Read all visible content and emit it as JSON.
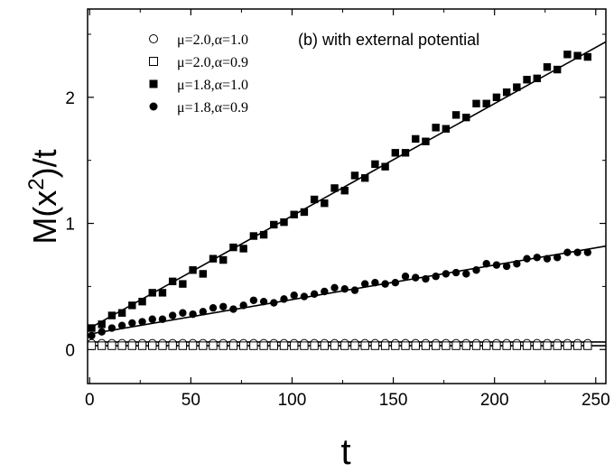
{
  "chart_data": {
    "type": "scatter",
    "annotation": "(b) with external potential",
    "xlabel": "t",
    "ylabel_main": "M(x",
    "ylabel_sup": "2",
    "ylabel_tail": ")/t",
    "xlim": [
      -1,
      255
    ],
    "ylim": [
      -0.27,
      2.7
    ],
    "x_ticks": [
      0,
      50,
      100,
      150,
      200,
      250
    ],
    "x_tick_labels": [
      "0",
      "50",
      "100",
      "150",
      "200",
      "250"
    ],
    "y_ticks": [
      0,
      1,
      2
    ],
    "y_tick_labels": [
      "0",
      "1",
      "2"
    ],
    "x": [
      1,
      6,
      11,
      16,
      21,
      26,
      31,
      36,
      41,
      46,
      51,
      56,
      61,
      66,
      71,
      76,
      81,
      86,
      91,
      96,
      101,
      106,
      111,
      116,
      121,
      126,
      131,
      136,
      141,
      146,
      151,
      156,
      161,
      166,
      171,
      176,
      181,
      186,
      191,
      196,
      201,
      206,
      211,
      216,
      221,
      226,
      231,
      236,
      241,
      246
    ],
    "series": [
      {
        "name": "μ=2.0,α=1.0",
        "marker": "circle-open",
        "values": [
          0.05,
          0.05,
          0.05,
          0.05,
          0.05,
          0.05,
          0.05,
          0.05,
          0.05,
          0.05,
          0.05,
          0.05,
          0.05,
          0.05,
          0.05,
          0.05,
          0.05,
          0.05,
          0.05,
          0.05,
          0.05,
          0.05,
          0.05,
          0.05,
          0.05,
          0.05,
          0.05,
          0.05,
          0.05,
          0.05,
          0.05,
          0.05,
          0.05,
          0.05,
          0.05,
          0.05,
          0.05,
          0.05,
          0.05,
          0.05,
          0.05,
          0.05,
          0.05,
          0.05,
          0.05,
          0.05,
          0.05,
          0.05,
          0.05,
          0.05
        ],
        "fit": [
          0.06,
          0.06
        ]
      },
      {
        "name": "μ=2.0,α=0.9",
        "marker": "square-open",
        "values": [
          0.03,
          0.03,
          0.03,
          0.03,
          0.03,
          0.03,
          0.03,
          0.03,
          0.03,
          0.03,
          0.03,
          0.03,
          0.03,
          0.03,
          0.03,
          0.03,
          0.03,
          0.03,
          0.03,
          0.03,
          0.03,
          0.03,
          0.03,
          0.03,
          0.03,
          0.03,
          0.03,
          0.03,
          0.03,
          0.03,
          0.03,
          0.03,
          0.03,
          0.03,
          0.03,
          0.03,
          0.03,
          0.03,
          0.03,
          0.03,
          0.03,
          0.03,
          0.03,
          0.03,
          0.03,
          0.03,
          0.03,
          0.03,
          0.03,
          0.03
        ],
        "fit": [
          0.03,
          0.03
        ]
      },
      {
        "name": "μ=1.8,α=1.0",
        "marker": "square-filled",
        "values": [
          0.17,
          0.2,
          0.27,
          0.29,
          0.35,
          0.38,
          0.45,
          0.45,
          0.54,
          0.52,
          0.63,
          0.6,
          0.72,
          0.71,
          0.81,
          0.8,
          0.9,
          0.91,
          0.99,
          1.01,
          1.07,
          1.09,
          1.19,
          1.16,
          1.28,
          1.26,
          1.38,
          1.36,
          1.47,
          1.45,
          1.56,
          1.56,
          1.67,
          1.65,
          1.76,
          1.75,
          1.86,
          1.84,
          1.95,
          1.95,
          2.0,
          2.04,
          2.08,
          2.14,
          2.15,
          2.24,
          2.22,
          2.34,
          2.33,
          2.32
        ],
        "fit": [
          0.16,
          2.44
        ]
      },
      {
        "name": "μ=1.8,α=0.9",
        "marker": "circle-filled",
        "values": [
          0.11,
          0.14,
          0.17,
          0.19,
          0.21,
          0.22,
          0.24,
          0.24,
          0.27,
          0.29,
          0.28,
          0.3,
          0.33,
          0.34,
          0.32,
          0.35,
          0.39,
          0.38,
          0.37,
          0.4,
          0.43,
          0.42,
          0.44,
          0.46,
          0.49,
          0.48,
          0.47,
          0.52,
          0.53,
          0.52,
          0.53,
          0.58,
          0.57,
          0.56,
          0.58,
          0.6,
          0.61,
          0.6,
          0.63,
          0.68,
          0.67,
          0.66,
          0.68,
          0.72,
          0.73,
          0.72,
          0.73,
          0.77,
          0.77,
          0.77
        ],
        "fit": [
          0.12,
          0.82
        ]
      }
    ],
    "grid": false,
    "legend_position": "top-left"
  }
}
